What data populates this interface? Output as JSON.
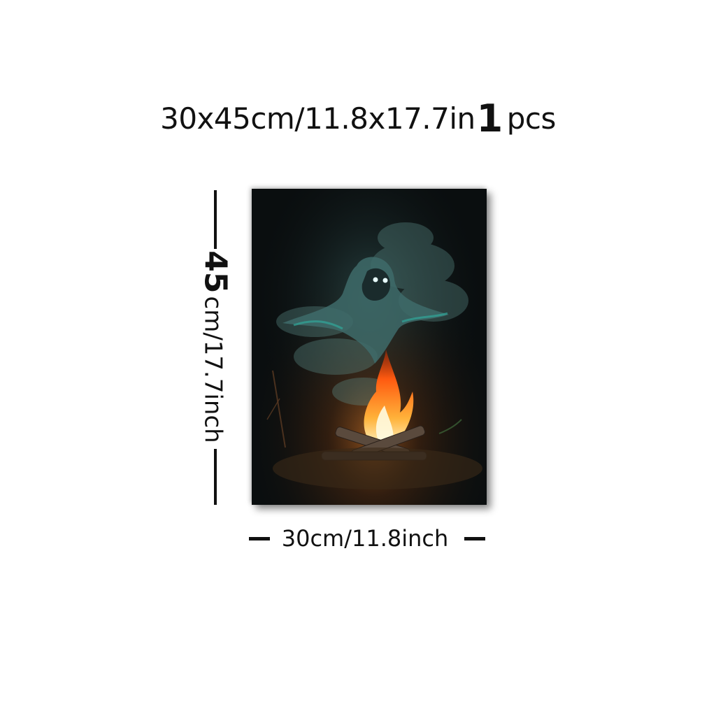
{
  "title": {
    "size_text": "30x45cm/11.8x17.7in",
    "quantity": "1",
    "unit": "pcs"
  },
  "height_label": {
    "value": "45",
    "rest": "cm/17.7inch"
  },
  "width_label": "30cm/11.8inch",
  "painting": {
    "subject": "ghost-over-campfire"
  },
  "colors": {
    "ink": "#111111",
    "canvas_bg": "#0b0f10",
    "smoke": "#4f7f7c",
    "flame": "#ff7a1a"
  }
}
